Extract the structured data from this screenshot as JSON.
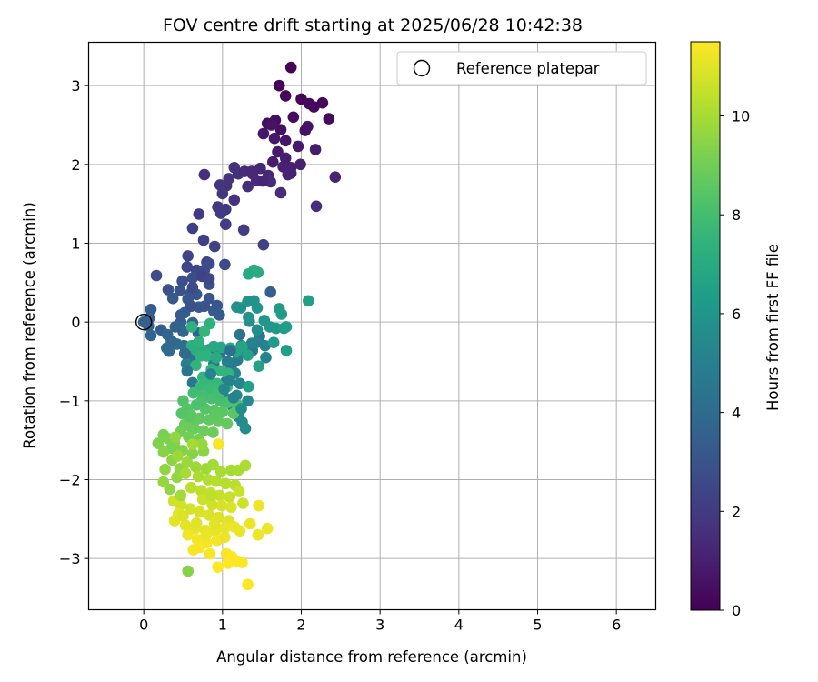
{
  "chart_data": {
    "type": "scatter",
    "title": "FOV centre drift starting at 2025/06/28 10:42:38",
    "xlabel": "Angular distance from reference (arcmin)",
    "ylabel": "Rotation from reference (arcmin)",
    "xlim": [
      -0.7,
      6.5
    ],
    "ylim": [
      -3.65,
      3.55
    ],
    "xticks": [
      0,
      1,
      2,
      3,
      4,
      5,
      6
    ],
    "yticks": [
      -3,
      -2,
      -1,
      0,
      1,
      2,
      3
    ],
    "grid": true,
    "legend": {
      "position": "top-right",
      "entries": [
        "Reference platepar"
      ]
    },
    "colorbar": {
      "label": "Hours from first FF file",
      "range": [
        0,
        11.5
      ],
      "ticks": [
        0,
        2,
        4,
        6,
        8,
        10
      ],
      "colormap": "viridis"
    },
    "reference_point": {
      "x": 0,
      "y": 0,
      "label": "Reference platepar"
    },
    "points": [
      [
        1.87,
        3.23,
        0.05
      ],
      [
        1.72,
        3.0,
        0.1
      ],
      [
        2.0,
        2.83,
        0.15
      ],
      [
        1.8,
        2.87,
        0.2
      ],
      [
        2.1,
        2.77,
        0.25
      ],
      [
        2.27,
        2.78,
        0.3
      ],
      [
        2.35,
        2.58,
        0.35
      ],
      [
        1.57,
        2.52,
        0.4
      ],
      [
        1.67,
        2.56,
        0.45
      ],
      [
        1.74,
        2.44,
        0.5
      ],
      [
        2.05,
        2.43,
        0.55
      ],
      [
        2.08,
        2.48,
        0.6
      ],
      [
        1.8,
        2.3,
        0.65
      ],
      [
        1.52,
        2.39,
        0.7
      ],
      [
        1.66,
        2.33,
        0.75
      ],
      [
        1.96,
        2.23,
        0.8
      ],
      [
        1.7,
        2.16,
        0.85
      ],
      [
        2.18,
        2.19,
        0.9
      ],
      [
        1.8,
        2.08,
        0.95
      ],
      [
        1.77,
        1.97,
        1.0
      ],
      [
        1.87,
        1.96,
        1.05
      ],
      [
        2.43,
        1.84,
        1.1
      ],
      [
        1.83,
        1.87,
        1.15
      ],
      [
        1.48,
        1.95,
        1.2
      ],
      [
        1.38,
        1.88,
        1.25
      ],
      [
        1.58,
        1.86,
        1.3
      ],
      [
        1.43,
        1.8,
        1.35
      ],
      [
        1.61,
        1.78,
        1.4
      ],
      [
        1.74,
        1.64,
        1.45
      ],
      [
        2.19,
        1.47,
        1.5
      ],
      [
        0.77,
        1.87,
        1.55
      ],
      [
        1.15,
        1.96,
        1.6
      ],
      [
        1.2,
        1.88,
        1.65
      ],
      [
        1.08,
        1.82,
        1.7
      ],
      [
        1.05,
        1.73,
        1.75
      ],
      [
        0.97,
        1.74,
        1.8
      ],
      [
        1.0,
        1.63,
        1.85
      ],
      [
        0.94,
        1.46,
        1.9
      ],
      [
        1.04,
        1.43,
        1.95
      ],
      [
        0.7,
        1.37,
        2.0
      ],
      [
        1.04,
        1.24,
        2.05
      ],
      [
        1.27,
        1.17,
        2.1
      ],
      [
        0.62,
        1.19,
        2.15
      ],
      [
        0.76,
        1.04,
        2.2
      ],
      [
        0.9,
        0.96,
        2.25
      ],
      [
        1.52,
        0.98,
        2.3
      ],
      [
        0.56,
        0.84,
        2.35
      ],
      [
        0.8,
        0.76,
        2.4
      ],
      [
        0.55,
        0.7,
        2.45
      ],
      [
        0.67,
        0.66,
        2.5
      ],
      [
        0.77,
        0.66,
        2.55
      ],
      [
        0.83,
        0.74,
        2.6
      ],
      [
        1.03,
        0.73,
        2.65
      ],
      [
        0.16,
        0.59,
        2.7
      ],
      [
        0.62,
        0.56,
        2.75
      ],
      [
        0.49,
        0.52,
        2.8
      ],
      [
        0.83,
        0.48,
        2.85
      ],
      [
        0.31,
        0.41,
        2.9
      ],
      [
        0.46,
        0.4,
        2.95
      ],
      [
        0.59,
        0.36,
        3.0
      ],
      [
        0.67,
        0.35,
        3.05
      ],
      [
        0.83,
        0.3,
        3.1
      ],
      [
        0.56,
        0.29,
        3.15
      ],
      [
        0.7,
        0.19,
        3.2
      ],
      [
        0.37,
        0.3,
        3.25
      ],
      [
        0.09,
        0.16,
        3.3
      ],
      [
        0.52,
        0.12,
        3.35
      ],
      [
        0.89,
        0.14,
        3.4
      ],
      [
        1.61,
        0.38,
        3.45
      ],
      [
        0.07,
        0.05,
        3.5
      ],
      [
        0.06,
        -0.05,
        3.55
      ],
      [
        0.47,
        0.0,
        3.6
      ],
      [
        0.62,
        -0.01,
        3.65
      ],
      [
        0.09,
        -0.17,
        3.7
      ],
      [
        0.5,
        -0.12,
        3.75
      ],
      [
        0.69,
        -0.14,
        3.8
      ],
      [
        0.35,
        -0.24,
        3.85
      ],
      [
        0.42,
        -0.28,
        3.9
      ],
      [
        0.29,
        -0.33,
        3.95
      ],
      [
        0.32,
        -0.37,
        4.0
      ],
      [
        0.51,
        -0.3,
        4.05
      ],
      [
        0.54,
        -0.37,
        4.1
      ],
      [
        0.63,
        -0.32,
        4.15
      ],
      [
        0.83,
        -0.35,
        4.2
      ],
      [
        0.97,
        -0.39,
        4.25
      ],
      [
        0.6,
        -0.47,
        4.3
      ],
      [
        1.22,
        -0.16,
        4.35
      ],
      [
        1.47,
        -0.18,
        4.4
      ],
      [
        1.38,
        -0.36,
        4.45
      ],
      [
        1.24,
        -0.3,
        4.5
      ],
      [
        1.31,
        -0.37,
        4.55
      ],
      [
        0.62,
        -0.77,
        4.6
      ],
      [
        1.04,
        -0.76,
        4.65
      ],
      [
        1.11,
        -0.56,
        4.7
      ],
      [
        1.19,
        -0.48,
        4.75
      ],
      [
        0.89,
        -0.53,
        4.8
      ],
      [
        1.06,
        -0.5,
        4.85
      ],
      [
        1.2,
        -0.41,
        4.9
      ],
      [
        0.54,
        -0.53,
        4.95
      ],
      [
        1.37,
        -0.27,
        5.0
      ],
      [
        1.43,
        -0.26,
        5.05
      ],
      [
        1.54,
        -0.3,
        5.1
      ],
      [
        1.55,
        -0.45,
        5.15
      ],
      [
        1.16,
        -0.65,
        5.2
      ],
      [
        1.22,
        -0.78,
        5.25
      ],
      [
        1.18,
        -0.93,
        5.3
      ],
      [
        1.02,
        -0.95,
        5.35
      ],
      [
        1.32,
        -1.0,
        5.4
      ],
      [
        1.13,
        -1.07,
        5.45
      ],
      [
        1.2,
        -1.2,
        5.5
      ],
      [
        1.25,
        -1.27,
        5.55
      ],
      [
        1.29,
        -1.35,
        5.6
      ],
      [
        1.34,
        0.01,
        5.65
      ],
      [
        1.44,
        -0.1,
        5.7
      ],
      [
        1.18,
        0.19,
        5.75
      ],
      [
        1.23,
        0.18,
        5.8
      ],
      [
        1.32,
        0.26,
        5.85
      ],
      [
        1.4,
        0.27,
        5.9
      ],
      [
        1.44,
        0.18,
        5.95
      ],
      [
        1.33,
        0.06,
        6.0
      ],
      [
        1.53,
        0.02,
        6.05
      ],
      [
        1.6,
        -0.06,
        6.1
      ],
      [
        1.68,
        -0.08,
        6.15
      ],
      [
        1.65,
        -0.26,
        6.2
      ],
      [
        1.72,
        0.17,
        6.25
      ],
      [
        1.75,
        0.1,
        6.3
      ],
      [
        1.78,
        -0.08,
        6.35
      ],
      [
        1.81,
        -0.06,
        6.4
      ],
      [
        1.81,
        -0.36,
        6.45
      ],
      [
        2.09,
        0.27,
        6.5
      ],
      [
        1.33,
        -0.82,
        6.55
      ],
      [
        1.46,
        -0.56,
        6.6
      ],
      [
        1.32,
        -0.42,
        6.65
      ],
      [
        1.25,
        -0.31,
        6.7
      ],
      [
        1.17,
        -0.38,
        6.75
      ],
      [
        1.1,
        -0.33,
        6.8
      ],
      [
        0.98,
        -0.32,
        6.85
      ],
      [
        0.89,
        -0.31,
        6.9
      ],
      [
        1.33,
        0.61,
        6.95
      ],
      [
        1.4,
        0.66,
        7.0
      ],
      [
        1.45,
        0.63,
        7.05
      ],
      [
        0.78,
        -0.36,
        7.1
      ],
      [
        0.67,
        -0.36,
        7.15
      ],
      [
        0.61,
        -0.3,
        7.2
      ],
      [
        0.84,
        -0.02,
        7.25
      ],
      [
        0.61,
        -0.06,
        7.3
      ],
      [
        0.72,
        -0.43,
        7.35
      ],
      [
        0.66,
        -0.55,
        7.4
      ],
      [
        0.86,
        -0.6,
        7.45
      ],
      [
        0.98,
        -0.62,
        7.5
      ],
      [
        1.07,
        -0.65,
        7.55
      ],
      [
        0.75,
        -0.7,
        7.6
      ],
      [
        0.82,
        -0.74,
        7.65
      ],
      [
        0.93,
        -0.78,
        7.7
      ],
      [
        0.72,
        -0.82,
        7.75
      ],
      [
        0.83,
        -0.85,
        7.8
      ],
      [
        0.95,
        -0.86,
        7.85
      ],
      [
        1.06,
        -0.82,
        7.9
      ],
      [
        0.63,
        -0.9,
        7.95
      ],
      [
        0.75,
        -0.93,
        8.0
      ],
      [
        0.86,
        -0.97,
        8.05
      ],
      [
        0.97,
        -1.0,
        8.1
      ],
      [
        1.07,
        -1.02,
        8.15
      ],
      [
        1.18,
        -1.04,
        8.2
      ],
      [
        0.67,
        -1.05,
        8.25
      ],
      [
        0.5,
        -1.0,
        8.3
      ],
      [
        0.55,
        -1.1,
        8.35
      ],
      [
        0.78,
        -1.1,
        8.4
      ],
      [
        0.89,
        -1.12,
        8.45
      ],
      [
        1.0,
        -1.14,
        8.5
      ],
      [
        0.6,
        -1.18,
        8.55
      ],
      [
        0.71,
        -1.22,
        8.6
      ],
      [
        0.83,
        -1.24,
        8.65
      ],
      [
        0.95,
        -1.26,
        8.7
      ],
      [
        1.06,
        -1.29,
        8.75
      ],
      [
        0.52,
        -1.3,
        8.8
      ],
      [
        0.64,
        -1.35,
        8.85
      ],
      [
        0.76,
        -1.38,
        8.9
      ],
      [
        0.88,
        -1.4,
        8.95
      ],
      [
        0.47,
        -1.39,
        9.0
      ],
      [
        0.57,
        -1.46,
        9.05
      ],
      [
        0.69,
        -1.49,
        9.1
      ],
      [
        0.25,
        -1.43,
        9.15
      ],
      [
        0.31,
        -1.48,
        9.2
      ],
      [
        0.18,
        -1.54,
        9.25
      ],
      [
        0.39,
        -1.54,
        9.3
      ],
      [
        0.49,
        -1.63,
        9.35
      ],
      [
        0.62,
        -1.67,
        9.4
      ],
      [
        0.76,
        -1.64,
        9.45
      ],
      [
        0.36,
        -1.75,
        9.5
      ],
      [
        0.46,
        -1.86,
        9.55
      ],
      [
        0.27,
        -1.87,
        9.6
      ],
      [
        0.42,
        -1.97,
        9.65
      ],
      [
        0.25,
        -2.03,
        9.7
      ],
      [
        0.55,
        -1.78,
        9.75
      ],
      [
        0.66,
        -1.84,
        9.8
      ],
      [
        0.79,
        -1.86,
        9.85
      ],
      [
        0.88,
        -1.81,
        9.9
      ],
      [
        1.11,
        -1.88,
        9.95
      ],
      [
        1.2,
        -1.88,
        10.0
      ],
      [
        1.29,
        -1.82,
        10.05
      ],
      [
        0.69,
        -1.96,
        10.1
      ],
      [
        0.82,
        -2.0,
        10.15
      ],
      [
        0.92,
        -2.02,
        10.2
      ],
      [
        1.04,
        -2.05,
        10.25
      ],
      [
        1.16,
        -2.07,
        10.3
      ],
      [
        0.6,
        -2.1,
        10.35
      ],
      [
        0.73,
        -2.14,
        10.4
      ],
      [
        0.85,
        -2.17,
        10.45
      ],
      [
        0.96,
        -2.2,
        10.5
      ],
      [
        1.09,
        -2.22,
        10.55
      ],
      [
        1.21,
        -2.15,
        10.6
      ],
      [
        1.26,
        -2.3,
        10.65
      ],
      [
        0.38,
        -2.27,
        10.7
      ],
      [
        0.47,
        -2.32,
        10.75
      ],
      [
        0.59,
        -2.37,
        10.8
      ],
      [
        0.71,
        -2.41,
        10.85
      ],
      [
        0.83,
        -2.45,
        10.9
      ],
      [
        0.95,
        -2.48,
        10.95
      ],
      [
        1.08,
        -2.52,
        11.0
      ],
      [
        0.44,
        -2.43,
        11.02
      ],
      [
        0.39,
        -2.52,
        11.04
      ],
      [
        0.53,
        -2.58,
        11.06
      ],
      [
        0.65,
        -2.62,
        11.08
      ],
      [
        0.78,
        -2.64,
        11.1
      ],
      [
        0.91,
        -2.65,
        11.12
      ],
      [
        1.03,
        -2.61,
        11.14
      ],
      [
        1.15,
        -2.6,
        11.16
      ],
      [
        1.22,
        -2.65,
        11.18
      ],
      [
        1.35,
        -2.56,
        11.2
      ],
      [
        1.45,
        -2.7,
        11.22
      ],
      [
        1.57,
        -2.62,
        11.24
      ],
      [
        1.46,
        -2.33,
        11.26
      ],
      [
        0.56,
        -2.7,
        11.28
      ],
      [
        0.68,
        -2.76,
        11.3
      ],
      [
        0.8,
        -2.8,
        11.32
      ],
      [
        0.93,
        -2.77,
        11.34
      ],
      [
        0.71,
        -2.86,
        11.36
      ],
      [
        0.63,
        -2.89,
        11.38
      ],
      [
        0.84,
        -2.94,
        11.4
      ],
      [
        1.05,
        -2.94,
        11.42
      ],
      [
        1.12,
        -2.98,
        11.44
      ],
      [
        1.18,
        -3.03,
        11.46
      ],
      [
        1.07,
        -3.06,
        11.48
      ],
      [
        0.94,
        -3.11,
        11.5
      ],
      [
        1.25,
        -3.05,
        11.5
      ],
      [
        1.32,
        -3.33,
        11.5
      ],
      [
        0.56,
        -3.16,
        9.4
      ],
      [
        0.95,
        -1.55,
        11.4
      ],
      [
        0.4,
        -1.46,
        9.6
      ],
      [
        0.35,
        -1.6,
        9.2
      ],
      [
        0.74,
        -1.55,
        9.7
      ],
      [
        0.62,
        -1.55,
        9.9
      ],
      [
        0.25,
        -1.65,
        9.4
      ],
      [
        0.43,
        -1.7,
        9.8
      ],
      [
        0.53,
        -1.92,
        10.0
      ],
      [
        0.33,
        -2.12,
        9.6
      ],
      [
        0.47,
        -2.2,
        9.9
      ],
      [
        0.5,
        -2.46,
        10.9
      ],
      [
        0.75,
        -2.25,
        10.6
      ],
      [
        0.87,
        -2.32,
        10.7
      ],
      [
        0.99,
        -2.33,
        10.8
      ],
      [
        1.11,
        -2.35,
        10.9
      ],
      [
        0.9,
        -2.56,
        11.0
      ],
      [
        1.03,
        -2.73,
        11.2
      ],
      [
        0.67,
        -2.55,
        11.0
      ],
      [
        0.79,
        -2.7,
        11.2
      ],
      [
        0.86,
        -2.2,
        10.4
      ],
      [
        0.98,
        -1.9,
        10.0
      ],
      [
        0.58,
        -1.32,
        8.9
      ],
      [
        0.66,
        -1.24,
        8.7
      ],
      [
        0.91,
        -1.17,
        8.6
      ],
      [
        1.14,
        -1.16,
        8.5
      ],
      [
        0.73,
        -1.01,
        8.2
      ],
      [
        0.95,
        -0.92,
        8.0
      ],
      [
        0.57,
        -1.2,
        8.5
      ],
      [
        0.48,
        -1.16,
        8.4
      ],
      [
        0.8,
        -0.43,
        7.4
      ],
      [
        0.92,
        -0.45,
        7.0
      ],
      [
        0.7,
        -0.25,
        7.3
      ],
      [
        0.77,
        -0.12,
        7.6
      ],
      [
        0.55,
        -0.62,
        4.5
      ],
      [
        0.85,
        -0.66,
        5.2
      ],
      [
        1.02,
        -0.85,
        5.3
      ],
      [
        1.09,
        -0.74,
        5.1
      ],
      [
        1.14,
        -0.96,
        5.0
      ],
      [
        1.24,
        -1.1,
        5.6
      ],
      [
        1.1,
        -0.36,
        4.2
      ],
      [
        0.77,
        0.2,
        3.0
      ],
      [
        0.93,
        0.21,
        3.1
      ],
      [
        0.62,
        0.44,
        2.6
      ],
      [
        0.47,
        0.09,
        3.3
      ],
      [
        0.22,
        -0.1,
        3.4
      ],
      [
        0.4,
        -0.06,
        3.6
      ],
      [
        0.3,
        -0.16,
        3.7
      ],
      [
        0.74,
        0.58,
        2.3
      ],
      [
        0.6,
        0.2,
        2.9
      ],
      [
        0.52,
        -0.4,
        4.0
      ],
      [
        0.96,
        0.09,
        3.3
      ],
      [
        0.83,
        0.55,
        2.5
      ],
      [
        0.98,
        1.38,
        2.0
      ],
      [
        1.15,
        1.55,
        1.7
      ],
      [
        1.32,
        1.72,
        1.5
      ],
      [
        1.28,
        1.91,
        1.4
      ],
      [
        1.64,
        2.03,
        0.9
      ],
      [
        1.9,
        2.6,
        0.4
      ],
      [
        2.16,
        2.73,
        0.3
      ],
      [
        1.62,
        2.5,
        0.6
      ],
      [
        1.99,
        2.0,
        1.0
      ],
      [
        1.37,
        1.91,
        1.3
      ],
      [
        1.51,
        1.79,
        1.2
      ],
      [
        1.87,
        1.89,
        1.1
      ]
    ]
  }
}
